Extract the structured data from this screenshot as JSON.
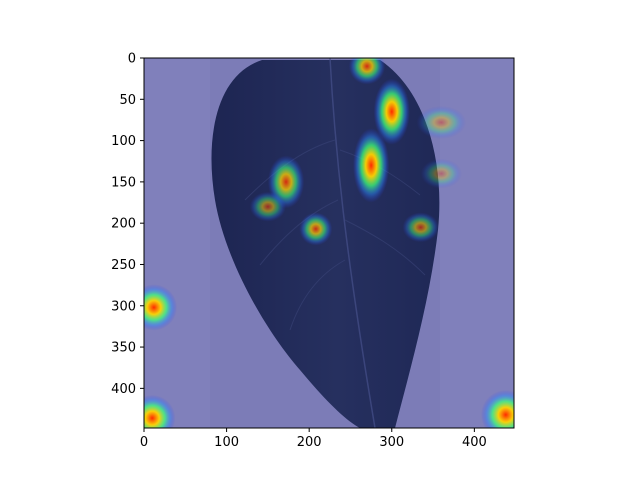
{
  "figure": {
    "image_description": "Leaf heatmap overlay",
    "x_axis": {
      "range": [
        0,
        448
      ],
      "ticks": [
        {
          "value": 0,
          "label": "0"
        },
        {
          "value": 100,
          "label": "100"
        },
        {
          "value": 200,
          "label": "200"
        },
        {
          "value": 300,
          "label": "300"
        },
        {
          "value": 400,
          "label": "400"
        }
      ]
    },
    "y_axis": {
      "range": [
        0,
        448
      ],
      "ticks": [
        {
          "value": 0,
          "label": "0"
        },
        {
          "value": 50,
          "label": "50"
        },
        {
          "value": 100,
          "label": "100"
        },
        {
          "value": 150,
          "label": "150"
        },
        {
          "value": 200,
          "label": "200"
        },
        {
          "value": 250,
          "label": "250"
        },
        {
          "value": 300,
          "label": "300"
        },
        {
          "value": 350,
          "label": "350"
        },
        {
          "value": 400,
          "label": "400"
        }
      ]
    },
    "hotspots": [
      {
        "x": 270,
        "y": 10,
        "rx": 22,
        "ry": 22,
        "intensity": 0.8
      },
      {
        "x": 300,
        "y": 65,
        "rx": 22,
        "ry": 40,
        "intensity": 1.0
      },
      {
        "x": 275,
        "y": 130,
        "rx": 22,
        "ry": 45,
        "intensity": 1.0
      },
      {
        "x": 172,
        "y": 150,
        "rx": 22,
        "ry": 32,
        "intensity": 0.8
      },
      {
        "x": 150,
        "y": 180,
        "rx": 22,
        "ry": 18,
        "intensity": 0.55
      },
      {
        "x": 208,
        "y": 207,
        "rx": 20,
        "ry": 20,
        "intensity": 0.75
      },
      {
        "x": 335,
        "y": 205,
        "rx": 22,
        "ry": 18,
        "intensity": 0.6
      },
      {
        "x": 360,
        "y": 78,
        "rx": 30,
        "ry": 20,
        "intensity": 0.4
      },
      {
        "x": 360,
        "y": 140,
        "rx": 25,
        "ry": 18,
        "intensity": 0.35
      },
      {
        "x": 12,
        "y": 302,
        "rx": 28,
        "ry": 28,
        "intensity": 1.0
      },
      {
        "x": 10,
        "y": 436,
        "rx": 28,
        "ry": 28,
        "intensity": 1.0
      },
      {
        "x": 438,
        "y": 432,
        "rx": 30,
        "ry": 30,
        "intensity": 1.0
      }
    ]
  }
}
